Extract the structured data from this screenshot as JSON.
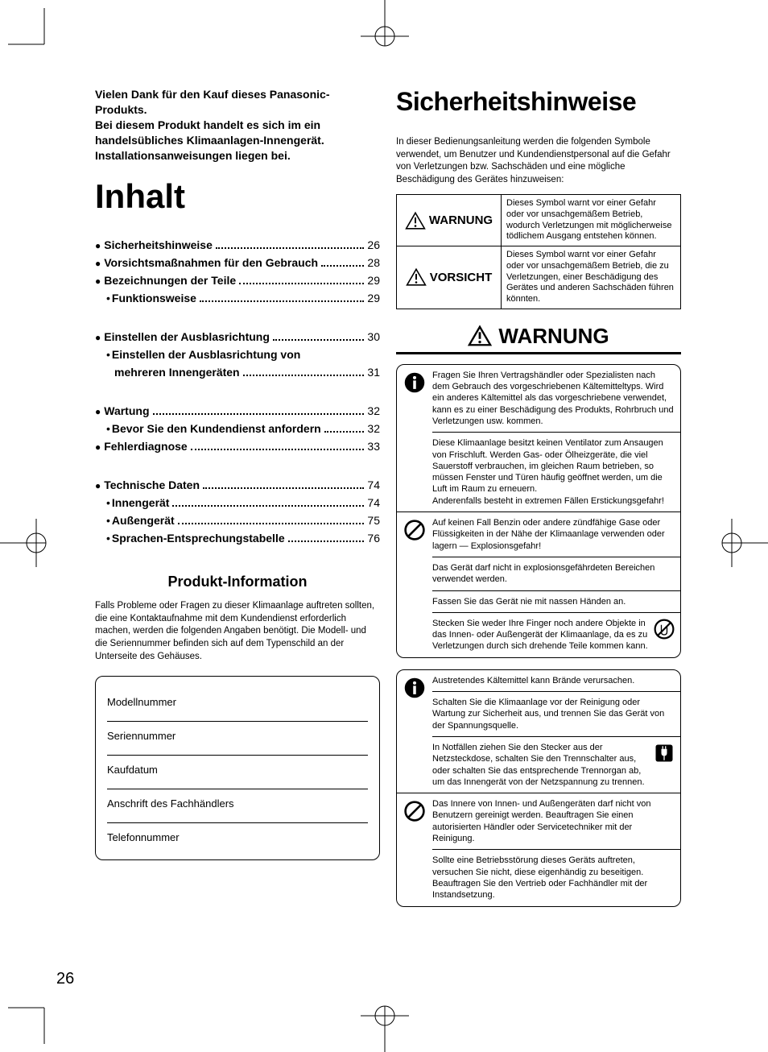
{
  "page_number": "26",
  "left": {
    "intro": "Vielen Dank für den Kauf dieses Panasonic-Produkts.\nBei diesem Produkt handelt es sich im ein handelsübliches Klimaanlagen-Innengerät. Installationsanweisungen liegen bei.",
    "heading": "Inhalt",
    "toc": [
      {
        "type": "main",
        "label": "Sicherheitshinweise",
        "page": "26"
      },
      {
        "type": "main",
        "label": "Vorsichtsmaßnahmen für den Gebrauch",
        "page": "28"
      },
      {
        "type": "main",
        "label": "Bezeichnungen der Teile",
        "page": "29"
      },
      {
        "type": "sub",
        "label": "Funktionsweise",
        "page": "29"
      },
      {
        "type": "gap"
      },
      {
        "type": "main",
        "label": "Einstellen der Ausblasrichtung",
        "page": "30"
      },
      {
        "type": "sub",
        "label": "Einstellen der Ausblasrichtung von mehreren Innengeräten",
        "page": "31"
      },
      {
        "type": "gap"
      },
      {
        "type": "main",
        "label": "Wartung",
        "page": "32"
      },
      {
        "type": "sub",
        "label": "Bevor Sie den Kundendienst anfordern",
        "page": "32"
      },
      {
        "type": "main",
        "label": "Fehlerdiagnose",
        "page": "33"
      },
      {
        "type": "gap"
      },
      {
        "type": "main",
        "label": "Technische Daten",
        "page": "74"
      },
      {
        "type": "sub",
        "label": "Innengerät",
        "page": "74"
      },
      {
        "type": "sub",
        "label": "Außengerät",
        "page": "75"
      },
      {
        "type": "sub",
        "label": "Sprachen-Entsprechungstabelle",
        "page": "76"
      }
    ],
    "product_info": {
      "title": "Produkt-Information",
      "text": "Falls Probleme oder Fragen zu dieser Klimaanlage auftreten sollten, die eine Kontaktaufnahme mit dem Kundendienst erforderlich machen, werden die folgenden Angaben benötigt. Die Modell- und die Seriennummer befinden sich auf dem Typenschild an der Unterseite des Gehäuses.",
      "fields": [
        "Modellnummer",
        "Seriennummer",
        "Kaufdatum",
        "Anschrift des Fachhändlers",
        "Telefonnummer"
      ]
    }
  },
  "right": {
    "heading": "Sicherheitshinweise",
    "intro": "In dieser Bedienungsanleitung werden die folgenden Symbole verwendet, um Benutzer und Kundendienstpersonal auf die Gefahr von Verletzungen bzw. Sachschäden und eine mögliche Beschädigung des Gerätes hinzuweisen:",
    "symbol_table": [
      {
        "label": "WARNUNG",
        "desc": "Dieses Symbol warnt vor einer Gefahr oder vor unsachgemäßem Betrieb, wodurch Verletzungen mit möglicherweise tödlichem Ausgang entstehen können."
      },
      {
        "label": "VORSICHT",
        "desc": "Dieses Symbol warnt vor einer Gefahr oder vor unsachgemäßem Betrieb, die zu Verletzungen, einer Beschädigung des Gerätes und anderen Sachschäden führen könnten."
      }
    ],
    "warning_heading": "WARNUNG",
    "box1": {
      "sections": [
        {
          "icon": "mandatory",
          "cells": [
            "Fragen Sie Ihren Vertragshändler oder Spezialisten nach dem Gebrauch des vorgeschriebenen Kältemitteltyps. Wird ein anderes Kältemittel als das vorgeschriebene verwendet, kann es zu einer Beschädigung des Produkts, Rohrbruch und Verletzungen usw. kommen.",
            "Diese Klimaanlage besitzt keinen Ventilator zum Ansaugen von Frischluft. Werden Gas- oder Ölheizgeräte, die viel Sauerstoff verbrauchen, im gleichen Raum betrieben, so müssen Fenster und Türen häufig geöffnet werden, um die Luft im Raum zu erneuern.\nAnderenfalls besteht in extremen Fällen Erstickungsgefahr!"
          ]
        },
        {
          "icon": "prohibit",
          "cells": [
            "Auf keinen Fall Benzin oder andere zündfähige Gase oder Flüssigkeiten in der Nähe der Klimaanlage verwenden oder lagern — Explosionsgefahr!",
            "Das Gerät darf nicht in explosionsgefährdeten Bereichen verwendet werden.",
            "Fassen Sie das Gerät nie mit nassen Händen an.",
            {
              "text": "Stecken Sie weder Ihre Finger noch andere Objekte in das Innen- oder Außengerät der Klimaanlage, da es zu Verletzungen durch sich drehende Teile kommen kann.",
              "inline_icon": "no-touch"
            }
          ]
        }
      ]
    },
    "box2": {
      "sections": [
        {
          "icon": "mandatory",
          "cells": [
            "Austretendes Kältemittel kann Brände verursachen.",
            "Schalten Sie die Klimaanlage vor der Reinigung oder Wartung zur Sicherheit aus, und trennen Sie das Gerät von der Spannungsquelle.",
            {
              "text": "In Notfällen ziehen Sie den Stecker aus der Netzsteckdose, schalten Sie den Trennschalter aus, oder schalten Sie das entsprechende Trennorgan ab, um das Innengerät von der Netzspannung zu trennen.",
              "inline_icon": "unplug"
            }
          ]
        },
        {
          "icon": "prohibit",
          "cells": [
            "Das Innere von Innen- und Außengeräten darf nicht von Benutzern gereinigt werden. Beauftragen Sie einen autorisierten Händler oder Servicetechniker mit der Reinigung.",
            "Sollte eine Betriebsstörung dieses Geräts auftreten, versuchen Sie nicht, diese eigenhändig zu beseitigen. Beauftragen Sie den Vertrieb oder Fachhändler mit der Instandsetzung."
          ]
        }
      ]
    }
  }
}
